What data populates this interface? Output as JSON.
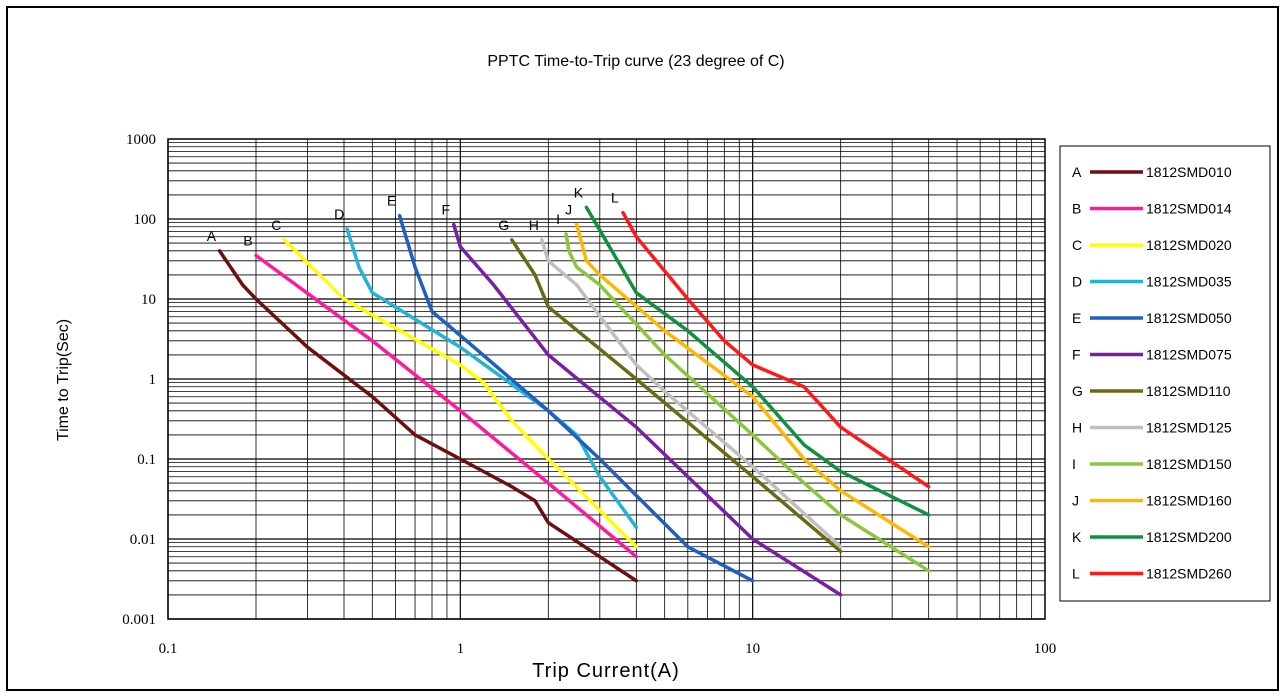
{
  "chart_data": {
    "type": "line",
    "title": "PPTC Time-to-Trip curve (23 degree of C)",
    "xlabel": "Trip Current(A)",
    "ylabel": "Time to Trip(Sec)",
    "x_scale": "log",
    "y_scale": "log",
    "xlim": [
      0.1,
      100
    ],
    "ylim": [
      0.001,
      1000
    ],
    "x_tick_labels": [
      "0.1",
      "1",
      "10",
      "100"
    ],
    "y_tick_labels": [
      "1000",
      "100",
      "10",
      "1",
      "0.1",
      "0.01",
      "0.001"
    ],
    "grid": true,
    "legend_position": "right",
    "series": [
      {
        "letter": "A",
        "name": "1812SMD010",
        "color": "#6b0f0f",
        "points": [
          [
            0.15,
            40
          ],
          [
            0.18,
            15
          ],
          [
            0.2,
            10
          ],
          [
            0.3,
            2.5
          ],
          [
            0.5,
            0.6
          ],
          [
            0.7,
            0.2
          ],
          [
            1,
            0.1
          ],
          [
            1.5,
            0.045
          ],
          [
            1.8,
            0.03
          ],
          [
            2,
            0.016
          ],
          [
            3,
            0.006
          ],
          [
            4,
            0.003
          ]
        ]
      },
      {
        "letter": "B",
        "name": "1812SMD014",
        "color": "#ff1a9c",
        "points": [
          [
            0.2,
            35
          ],
          [
            0.5,
            3
          ],
          [
            1,
            0.4
          ],
          [
            2,
            0.05
          ],
          [
            4,
            0.006
          ]
        ]
      },
      {
        "letter": "C",
        "name": "1812SMD020",
        "color": "#ffff00",
        "points": [
          [
            0.25,
            55
          ],
          [
            0.4,
            10
          ],
          [
            1,
            1.5
          ],
          [
            1.2,
            0.9
          ],
          [
            1.5,
            0.3
          ],
          [
            2,
            0.1
          ],
          [
            4,
            0.008
          ]
        ]
      },
      {
        "letter": "D",
        "name": "1812SMD035",
        "color": "#22b3d6",
        "points": [
          [
            0.41,
            75
          ],
          [
            0.45,
            25
          ],
          [
            0.5,
            12
          ],
          [
            1,
            2.5
          ],
          [
            2,
            0.4
          ],
          [
            2.5,
            0.2
          ],
          [
            3,
            0.06
          ],
          [
            4,
            0.014
          ]
        ]
      },
      {
        "letter": "E",
        "name": "1812SMD050",
        "color": "#1f5fbf",
        "points": [
          [
            0.62,
            110
          ],
          [
            0.7,
            25
          ],
          [
            0.8,
            7
          ],
          [
            1,
            3.5
          ],
          [
            2,
            0.4
          ],
          [
            3,
            0.1
          ],
          [
            4,
            0.035
          ],
          [
            6,
            0.008
          ],
          [
            10,
            0.003
          ]
        ]
      },
      {
        "letter": "F",
        "name": "1812SMD075",
        "color": "#7b1fa2",
        "points": [
          [
            0.95,
            85
          ],
          [
            1,
            45
          ],
          [
            1.3,
            15
          ],
          [
            2,
            2
          ],
          [
            4,
            0.25
          ],
          [
            10,
            0.01
          ],
          [
            20,
            0.002
          ]
        ]
      },
      {
        "letter": "G",
        "name": "1812SMD110",
        "color": "#6b6a14",
        "points": [
          [
            1.5,
            55
          ],
          [
            1.8,
            20
          ],
          [
            2,
            8
          ],
          [
            4,
            1
          ],
          [
            10,
            0.06
          ],
          [
            20,
            0.007
          ]
        ]
      },
      {
        "letter": "H",
        "name": "1812SMD125",
        "color": "#bfbfbf",
        "points": [
          [
            1.9,
            55
          ],
          [
            2,
            30
          ],
          [
            2.5,
            15
          ],
          [
            4,
            1.5
          ],
          [
            5,
            0.7
          ],
          [
            10,
            0.08
          ],
          [
            20,
            0.008
          ]
        ]
      },
      {
        "letter": "I",
        "name": "1812SMD150",
        "color": "#8cc63f",
        "points": [
          [
            2.3,
            65
          ],
          [
            2.35,
            40
          ],
          [
            2.5,
            25
          ],
          [
            3,
            15
          ],
          [
            5,
            2
          ],
          [
            10,
            0.2
          ],
          [
            15,
            0.05
          ],
          [
            20,
            0.02
          ],
          [
            40,
            0.004
          ]
        ]
      },
      {
        "letter": "J",
        "name": "1812SMD160",
        "color": "#ffb800",
        "points": [
          [
            2.5,
            85
          ],
          [
            2.7,
            30
          ],
          [
            3,
            20
          ],
          [
            5,
            4
          ],
          [
            10,
            0.6
          ],
          [
            15,
            0.1
          ],
          [
            20,
            0.04
          ],
          [
            40,
            0.008
          ]
        ]
      },
      {
        "letter": "K",
        "name": "1812SMD200",
        "color": "#109040",
        "points": [
          [
            2.7,
            140
          ],
          [
            4,
            12
          ],
          [
            6,
            4
          ],
          [
            10,
            0.8
          ],
          [
            15,
            0.15
          ],
          [
            20,
            0.07
          ],
          [
            40,
            0.02
          ]
        ]
      },
      {
        "letter": "L",
        "name": "1812SMD260",
        "color": "#ff1a1a",
        "points": [
          [
            3.6,
            120
          ],
          [
            4,
            60
          ],
          [
            6,
            10
          ],
          [
            8,
            3
          ],
          [
            10,
            1.5
          ],
          [
            15,
            0.8
          ],
          [
            20,
            0.25
          ],
          [
            40,
            0.045
          ]
        ]
      }
    ]
  }
}
